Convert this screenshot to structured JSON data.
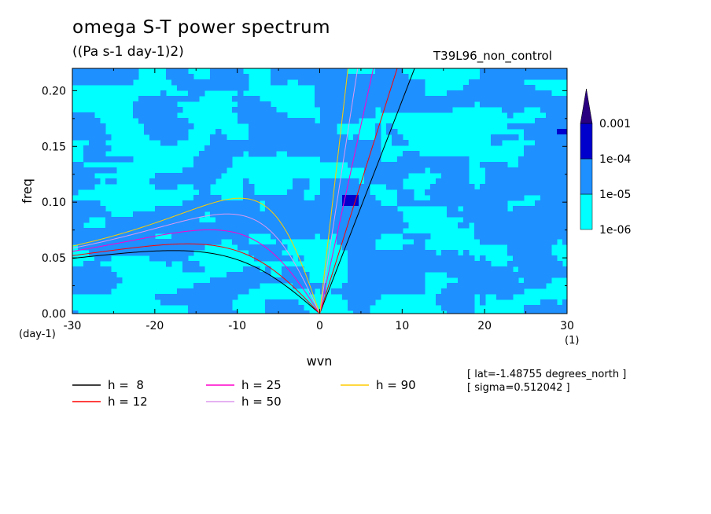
{
  "header": {
    "title": "omega S-T power spectrum",
    "units": "((Pa s-1 day-1)2)",
    "run_name": "T39L96_non_control"
  },
  "notes": {
    "lat": "[ lat=-1.48755 degrees_north ]",
    "sigma": "[ sigma=0.512042 ]"
  },
  "chart_data": {
    "type": "heatmap",
    "xlabel": "wvn",
    "ylabel": "freq",
    "x_unit_label": "(1)",
    "y_unit_label": "(day-1)",
    "xlim": [
      -30,
      30
    ],
    "ylim": [
      0,
      0.22
    ],
    "x_ticks": [
      -30,
      -20,
      -10,
      0,
      10,
      20,
      30
    ],
    "x_tick_labels": [
      "-30",
      "-20",
      "-10",
      "0",
      "10",
      "20",
      "30"
    ],
    "y_ticks": [
      0,
      0.05,
      0.1,
      0.15,
      0.2
    ],
    "y_tick_labels": [
      "0.00",
      "0.05",
      "0.10",
      "0.15",
      "0.20"
    ],
    "colorbar": {
      "levels": [
        "1e-06",
        "1e-05",
        "1e-04",
        "0.001"
      ],
      "colors": [
        "#00ffff",
        "#1e90ff",
        "#0000cc",
        "#2b0080"
      ],
      "extend": "max"
    },
    "dispersion_curves": [
      {
        "label": "h =  8",
        "h": 8,
        "color": "#000000"
      },
      {
        "label": "h = 12",
        "h": 12,
        "color": "#ff0000"
      },
      {
        "label": "h = 25",
        "h": 25,
        "color": "#ff00cc"
      },
      {
        "label": "h = 50",
        "h": 50,
        "color": "#dd99ee"
      },
      {
        "label": "h = 90",
        "h": 90,
        "color": "#ffcc00"
      }
    ],
    "grid": false
  }
}
